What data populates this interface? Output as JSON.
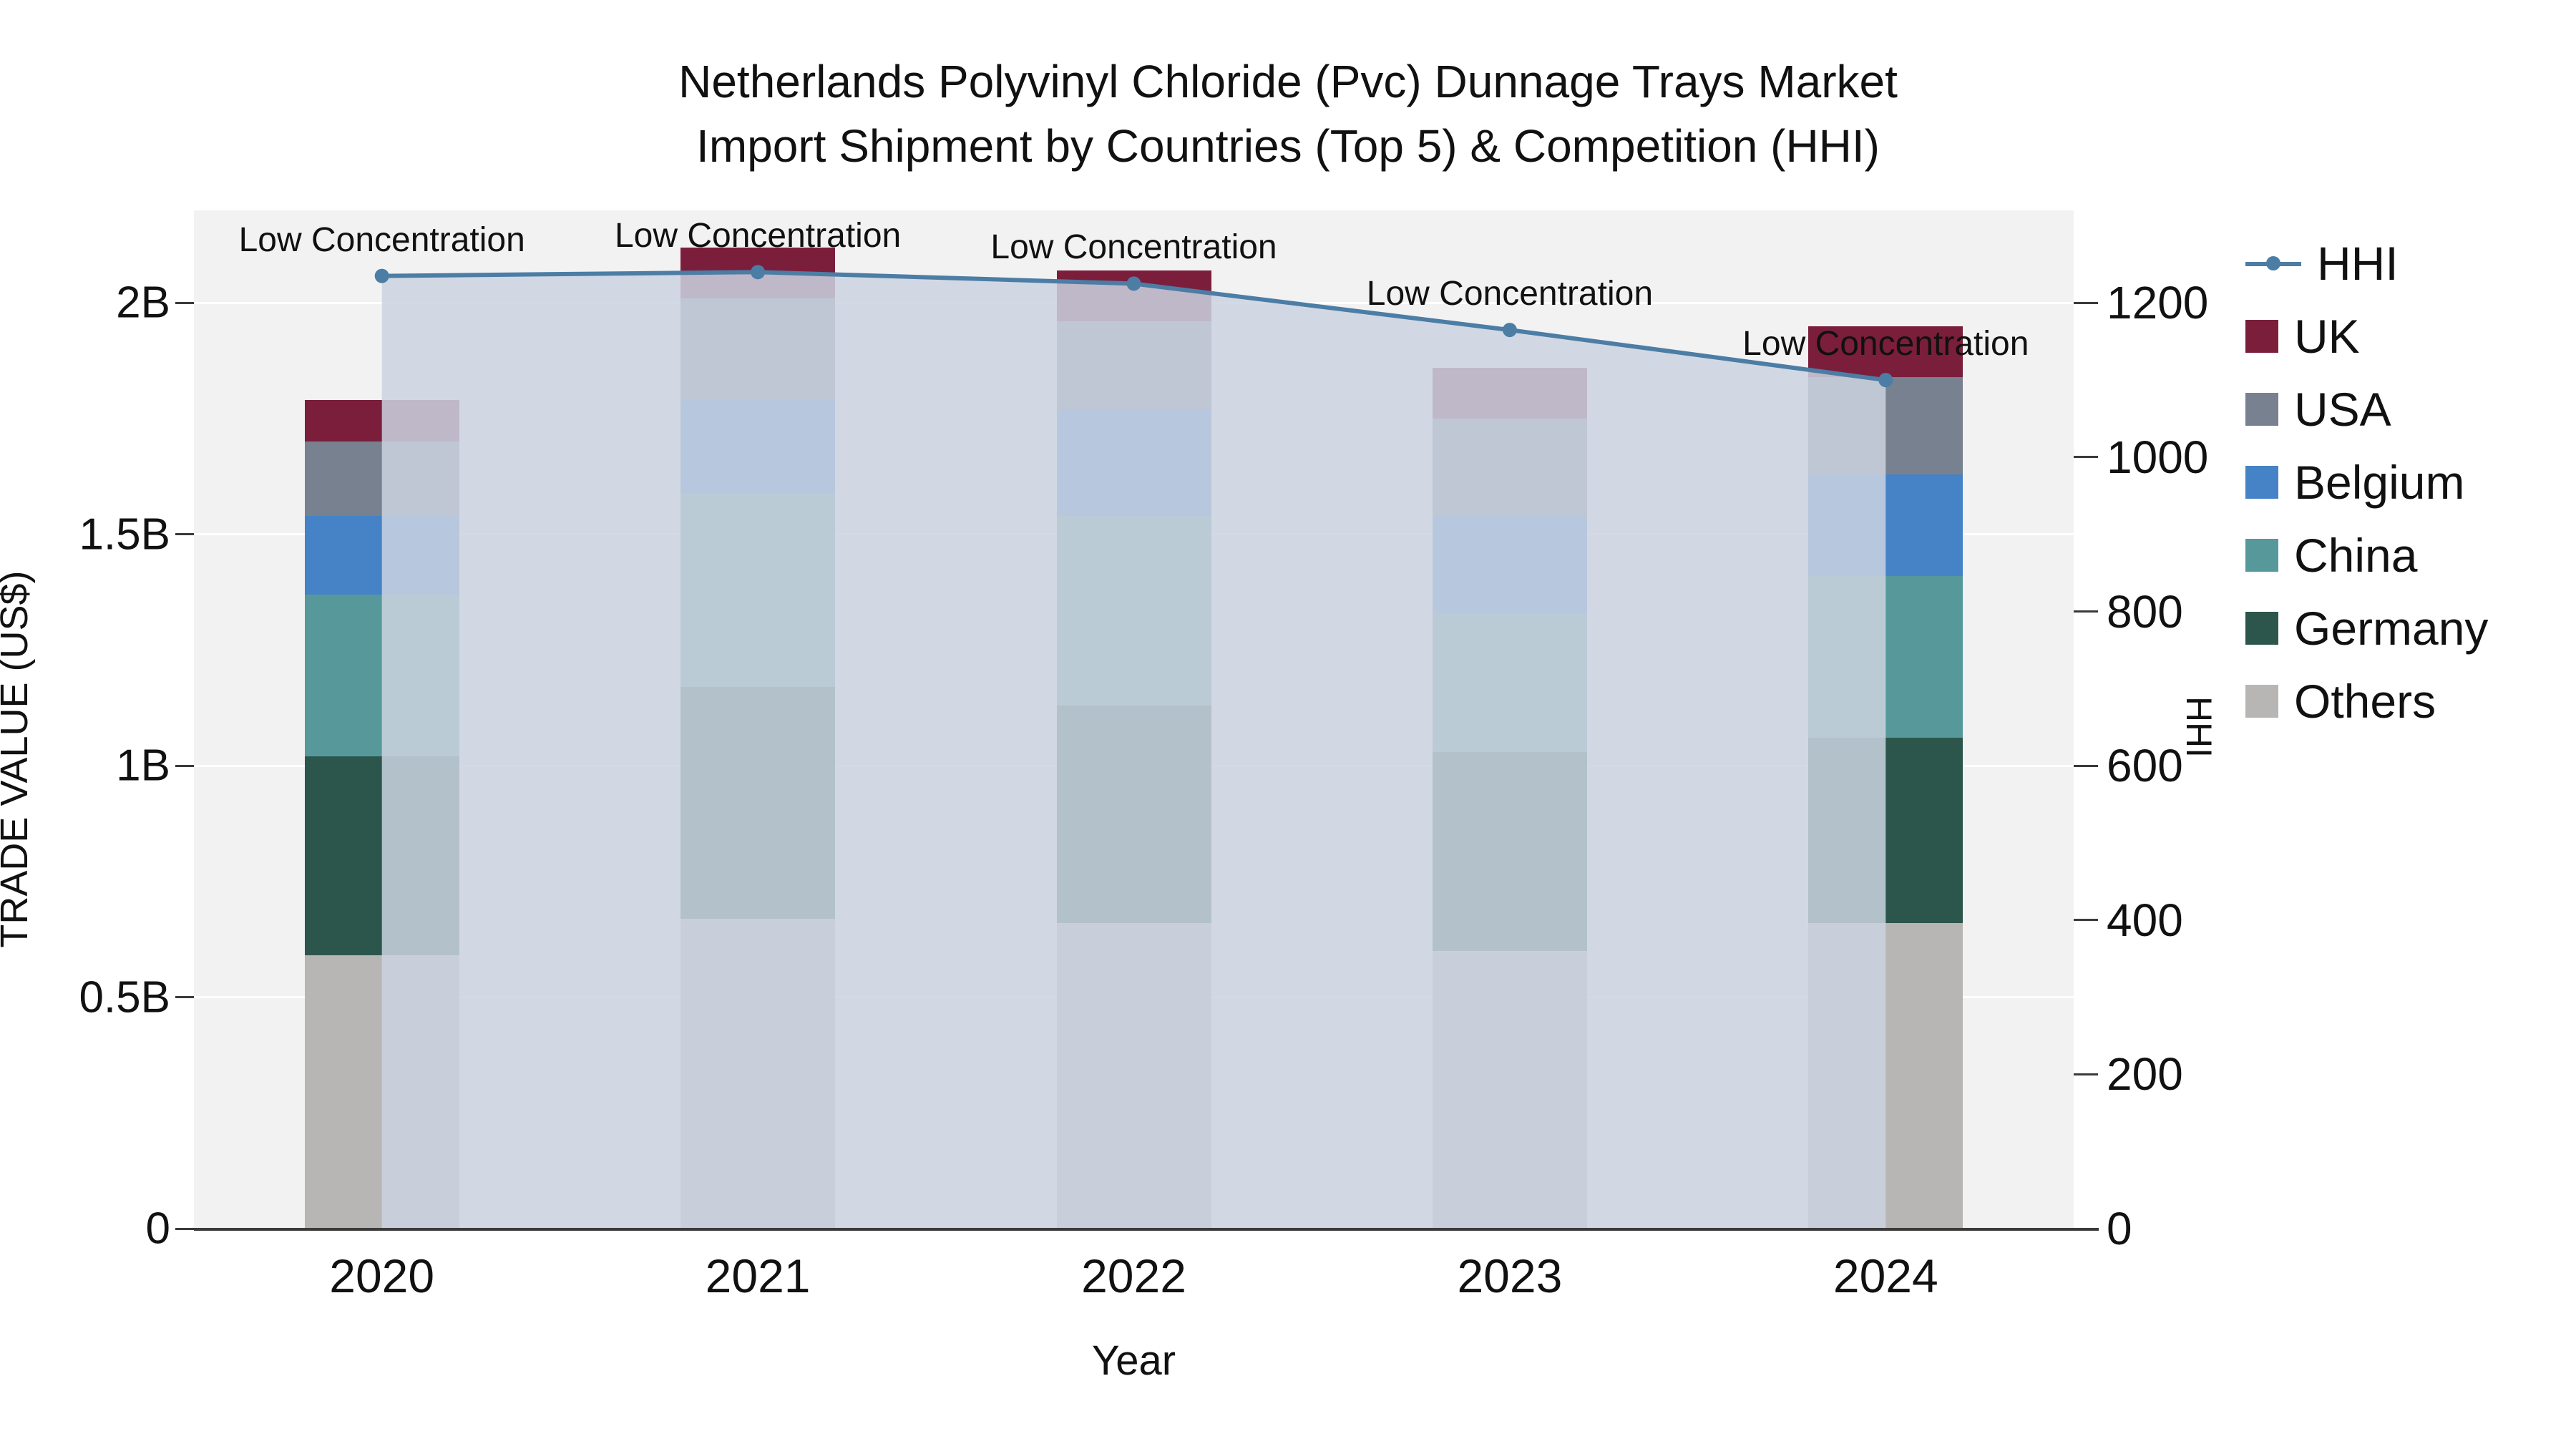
{
  "chart_data": {
    "type": "bar",
    "title_line1": "Netherlands Polyvinyl Chloride (Pvc) Dunnage Trays Market",
    "title_line2": "Import Shipment by Countries (Top 5) & Competition (HHI)",
    "xlabel": "Year",
    "ylabel_left": "TRADE VALUE (US$)",
    "ylabel_right": "HHI",
    "categories": [
      "2020",
      "2021",
      "2022",
      "2023",
      "2024"
    ],
    "bar_unit": "billion US$",
    "stack_order_bottom_to_top": [
      "Others",
      "Germany",
      "China",
      "Belgium",
      "USA",
      "UK"
    ],
    "series": [
      {
        "name": "Others",
        "color": "#b8b6b4",
        "values": [
          0.59,
          0.67,
          0.66,
          0.6,
          0.66
        ]
      },
      {
        "name": "Germany",
        "color": "#2c564c",
        "values": [
          0.43,
          0.5,
          0.47,
          0.43,
          0.4
        ]
      },
      {
        "name": "China",
        "color": "#57999b",
        "values": [
          0.35,
          0.42,
          0.41,
          0.3,
          0.35
        ]
      },
      {
        "name": "Belgium",
        "color": "#4583c6",
        "values": [
          0.17,
          0.2,
          0.23,
          0.21,
          0.22
        ]
      },
      {
        "name": "USA",
        "color": "#78818f",
        "values": [
          0.16,
          0.22,
          0.19,
          0.21,
          0.21
        ]
      },
      {
        "name": "UK",
        "color": "#7b1e3c",
        "values": [
          0.09,
          0.11,
          0.11,
          0.11,
          0.11
        ]
      }
    ],
    "line_series": {
      "name": "HHI",
      "color": "#4c7da5",
      "area_fill": "rgba(203,211,224,0.85)",
      "values": [
        1235,
        1240,
        1225,
        1165,
        1100
      ]
    },
    "annotations": [
      "Low Concentration",
      "Low Concentration",
      "Low Concentration",
      "Low Concentration",
      "Low Concentration"
    ],
    "y_left_ticks": [
      {
        "v": 0,
        "label": "0"
      },
      {
        "v": 0.5,
        "label": "0.5B"
      },
      {
        "v": 1,
        "label": "1B"
      },
      {
        "v": 1.5,
        "label": "1.5B"
      },
      {
        "v": 2,
        "label": "2B"
      }
    ],
    "y_left_max": 2.2,
    "y_right_ticks": [
      {
        "v": 0,
        "label": "0"
      },
      {
        "v": 200,
        "label": "200"
      },
      {
        "v": 400,
        "label": "400"
      },
      {
        "v": 600,
        "label": "600"
      },
      {
        "v": 800,
        "label": "800"
      },
      {
        "v": 1000,
        "label": "1000"
      },
      {
        "v": 1200,
        "label": "1200"
      }
    ],
    "y_right_max": 1320,
    "grid": "horizontal-white",
    "legend_position": "right",
    "legend": [
      {
        "label": "HHI",
        "type": "line",
        "color": "#4c7da5"
      },
      {
        "label": "UK",
        "type": "square",
        "color": "#7b1e3c"
      },
      {
        "label": "USA",
        "type": "square",
        "color": "#78818f"
      },
      {
        "label": "Belgium",
        "type": "square",
        "color": "#4583c6"
      },
      {
        "label": "China",
        "type": "square",
        "color": "#57999b"
      },
      {
        "label": "Germany",
        "type": "square",
        "color": "#2c564c"
      },
      {
        "label": "Others",
        "type": "square",
        "color": "#b8b6b4"
      }
    ]
  }
}
